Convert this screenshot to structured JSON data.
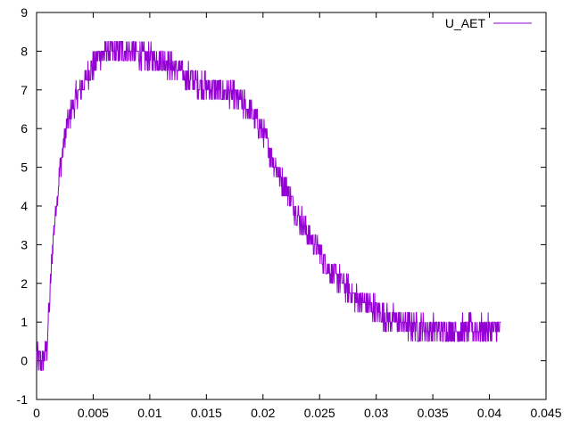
{
  "chart_data": {
    "type": "line",
    "title": "",
    "xlabel": "",
    "ylabel": "",
    "xlim": [
      0,
      0.045
    ],
    "ylim": [
      -1,
      9
    ],
    "x_ticks": [
      "0",
      "0.005",
      "0.01",
      "0.015",
      "0.02",
      "0.025",
      "0.03",
      "0.035",
      "0.04",
      "0.045"
    ],
    "y_ticks": [
      "-1",
      "0",
      "1",
      "2",
      "3",
      "4",
      "5",
      "6",
      "7",
      "8",
      "9"
    ],
    "grid": false,
    "legend_position": "top-right",
    "series": [
      {
        "name": "U_AET",
        "color": "#9400d3",
        "noise": "quantized signal with step noise of about 0.25 to 0.5",
        "x": [
          0,
          0.0005,
          0.0009,
          0.0012,
          0.0015,
          0.002,
          0.0025,
          0.003,
          0.0035,
          0.004,
          0.0045,
          0.005,
          0.0055,
          0.006,
          0.007,
          0.008,
          0.009,
          0.01,
          0.011,
          0.012,
          0.013,
          0.014,
          0.015,
          0.016,
          0.017,
          0.018,
          0.019,
          0.02,
          0.021,
          0.022,
          0.023,
          0.024,
          0.025,
          0.026,
          0.027,
          0.028,
          0.029,
          0.03,
          0.031,
          0.032,
          0.033,
          0.034,
          0.035,
          0.036,
          0.037,
          0.038,
          0.039,
          0.04,
          0.041
        ],
        "y": [
          0,
          0,
          0.3,
          1.8,
          3.3,
          4.8,
          5.8,
          6.4,
          6.8,
          7.1,
          7.4,
          7.6,
          7.9,
          8.0,
          8.0,
          8.0,
          7.9,
          7.8,
          7.8,
          7.6,
          7.4,
          7.2,
          7.1,
          7.0,
          6.9,
          6.7,
          6.4,
          5.9,
          5.1,
          4.5,
          3.8,
          3.3,
          2.8,
          2.3,
          2.0,
          1.7,
          1.5,
          1.3,
          1.1,
          1.0,
          0.9,
          0.85,
          0.8,
          0.8,
          0.8,
          0.8,
          0.8,
          0.8,
          0.75
        ]
      }
    ]
  }
}
